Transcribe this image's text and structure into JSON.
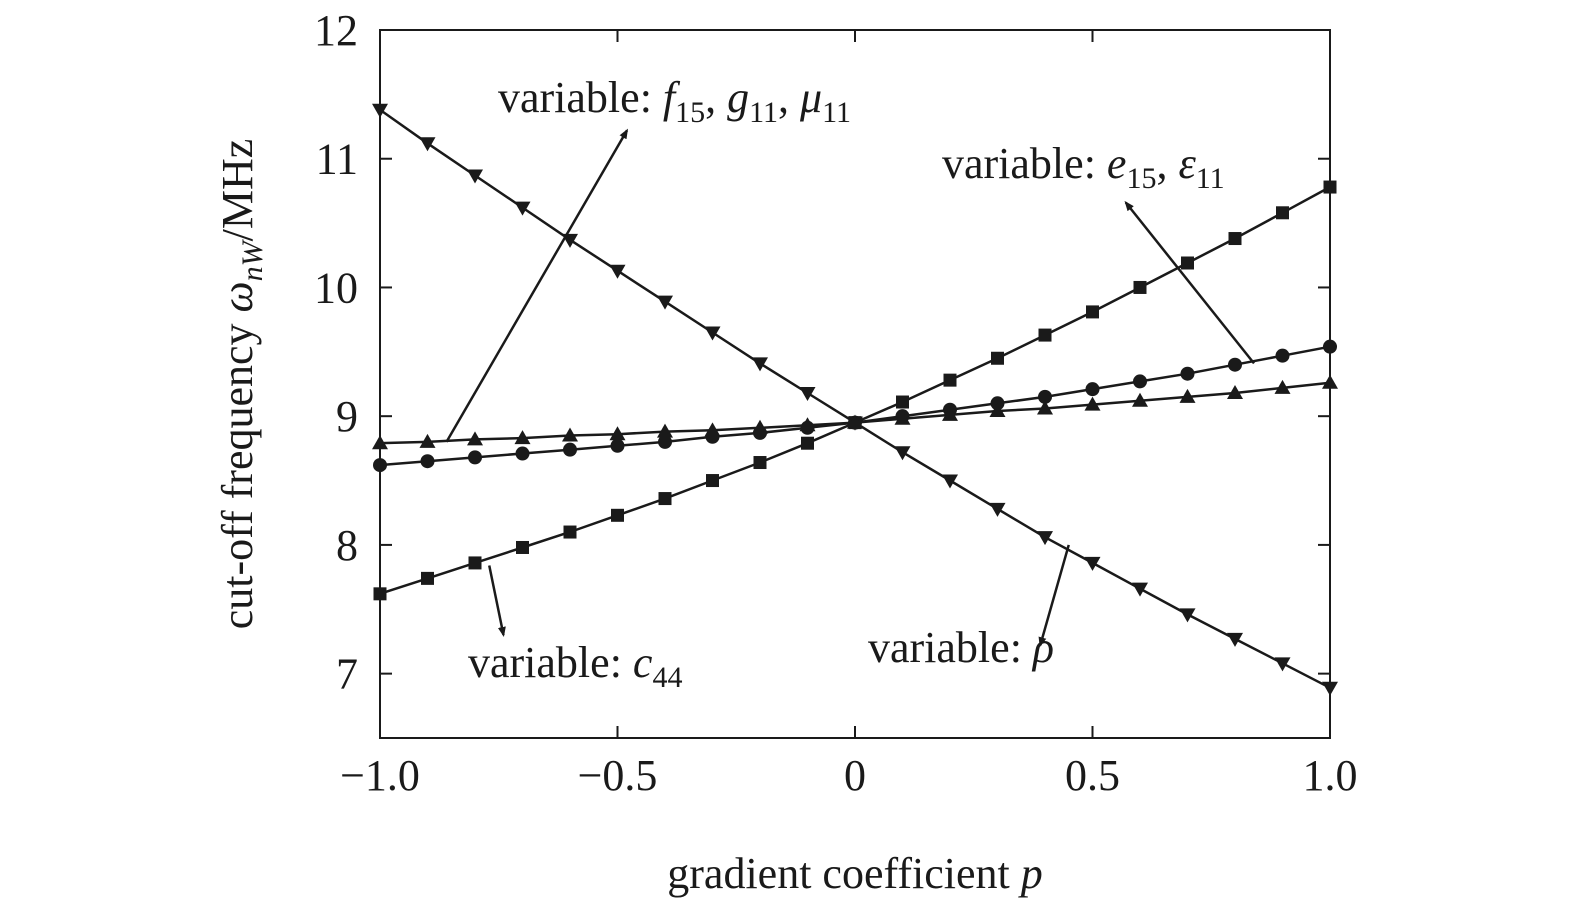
{
  "chart_data": {
    "type": "line",
    "title": "",
    "xlabel": {
      "text": "gradient coefficient ",
      "var": "p"
    },
    "ylabel": {
      "text": "cut-off frequency ",
      "var": "ω",
      "sub": "nW",
      "unit": "/MHz"
    },
    "xlim": [
      -1.0,
      1.0
    ],
    "ylim": [
      6.5,
      12
    ],
    "xticks": [
      -1.0,
      -0.5,
      0,
      0.5,
      1.0
    ],
    "xtick_labels": [
      "−1.0",
      "−0.5",
      "0",
      "0.5",
      "1.0"
    ],
    "yticks": [
      7,
      8,
      9,
      10,
      11,
      12
    ],
    "ytick_labels": [
      "7",
      "8",
      "9",
      "10",
      "11",
      "12"
    ],
    "grid": false,
    "x": [
      -1.0,
      -0.9,
      -0.8,
      -0.7,
      -0.6,
      -0.5,
      -0.4,
      -0.3,
      -0.2,
      -0.1,
      0,
      0.1,
      0.2,
      0.3,
      0.4,
      0.5,
      0.6,
      0.7,
      0.8,
      0.9,
      1.0
    ],
    "series": [
      {
        "marker": "triangle-down",
        "values": [
          11.38,
          11.12,
          10.87,
          10.62,
          10.37,
          10.13,
          9.89,
          9.65,
          9.41,
          9.18,
          8.95,
          8.72,
          8.5,
          8.28,
          8.06,
          7.86,
          7.66,
          7.46,
          7.27,
          7.08,
          6.89
        ]
      },
      {
        "marker": "square",
        "values": [
          7.62,
          7.74,
          7.86,
          7.98,
          8.1,
          8.23,
          8.36,
          8.5,
          8.64,
          8.79,
          8.95,
          9.11,
          9.28,
          9.45,
          9.63,
          9.81,
          10.0,
          10.19,
          10.38,
          10.58,
          10.78
        ]
      },
      {
        "marker": "circle",
        "values": [
          8.62,
          8.65,
          8.68,
          8.71,
          8.74,
          8.77,
          8.8,
          8.84,
          8.87,
          8.91,
          8.95,
          9.0,
          9.05,
          9.1,
          9.15,
          9.21,
          9.27,
          9.33,
          9.4,
          9.47,
          9.54
        ]
      },
      {
        "marker": "triangle-up",
        "values": [
          8.79,
          8.8,
          8.82,
          8.83,
          8.85,
          8.86,
          8.88,
          8.89,
          8.91,
          8.93,
          8.95,
          8.98,
          9.01,
          9.04,
          9.06,
          9.09,
          9.12,
          9.15,
          9.18,
          9.22,
          9.26
        ]
      }
    ],
    "annotations": [
      {
        "id": "fgmu",
        "text": "variable: ",
        "vars": [
          {
            "v": "f",
            "s": "15"
          },
          {
            "v": "g",
            "s": "11"
          },
          {
            "v": "μ",
            "s": "11"
          }
        ],
        "arrow": {
          "from": [
            -0.86,
            8.8
          ],
          "to": [
            -0.48,
            11.22
          ]
        }
      },
      {
        "id": "eeps",
        "text": "variable: ",
        "vars": [
          {
            "v": "e",
            "s": "15"
          },
          {
            "v": "ε",
            "s": "11"
          }
        ],
        "arrow": {
          "from": [
            0.84,
            9.41
          ],
          "to": [
            0.57,
            10.66
          ]
        }
      },
      {
        "id": "c44",
        "text": "variable: ",
        "vars": [
          {
            "v": "c",
            "s": "44"
          }
        ],
        "arrow": {
          "from": [
            -0.77,
            7.84
          ],
          "to": [
            -0.74,
            7.3
          ]
        }
      },
      {
        "id": "rho",
        "text": "variable: ",
        "vars": [
          {
            "v": "ρ",
            "s": ""
          }
        ],
        "arrow": {
          "from": [
            0.45,
            8.0
          ],
          "to": [
            0.39,
            7.22
          ]
        }
      }
    ]
  }
}
